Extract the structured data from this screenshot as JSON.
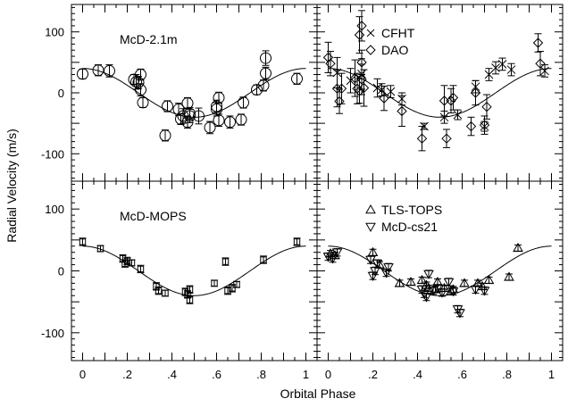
{
  "chart_data": {
    "type": "scatter",
    "xlabel": "Orbital Phase",
    "ylabel": "Radial Velocity (m/s)",
    "xlim": [
      -0.05,
      1.05
    ],
    "ylim": [
      -145,
      145
    ],
    "x_ticks": [
      0,
      0.2,
      0.4,
      0.6,
      0.8,
      1
    ],
    "x_tick_labels": [
      "0",
      ".2",
      ".4",
      ".6",
      ".8",
      "1"
    ],
    "y_ticks": [
      100,
      0,
      -100
    ],
    "y_tick_labels": [
      "100",
      "0",
      "-100"
    ],
    "model_curve": {
      "amplitude": 40,
      "phase_offset": 0.0
    },
    "panels": [
      {
        "label": "McD-2.1m",
        "series": [
          {
            "name": "",
            "marker": "circle",
            "x": [
              0.0,
              0.07,
              0.12,
              0.23,
              0.24,
              0.25,
              0.26,
              0.26,
              0.27,
              0.37,
              0.38,
              0.43,
              0.44,
              0.45,
              0.47,
              0.47,
              0.48,
              0.48,
              0.52,
              0.57,
              0.6,
              0.6,
              0.61,
              0.61,
              0.66,
              0.71,
              0.72,
              0.78,
              0.81,
              0.82,
              0.82,
              0.96
            ],
            "y": [
              31,
              37,
              36,
              22,
              18,
              17,
              30,
              5,
              -16,
              -70,
              -22,
              -27,
              -43,
              -38,
              -48,
              -17,
              -38,
              -34,
              -38,
              -57,
              -27,
              -22,
              -8,
              -45,
              -48,
              -44,
              -16,
              5,
              12,
              57,
              32,
              23
            ],
            "err": [
              8,
              9,
              10,
              8,
              12,
              10,
              9,
              10,
              8,
              9,
              9,
              10,
              9,
              12,
              10,
              9,
              11,
              10,
              13,
              10,
              11,
              10,
              9,
              10,
              10,
              9,
              9,
              8,
              9,
              12,
              10,
              9
            ]
          }
        ]
      },
      {
        "label": "",
        "legend": [
          {
            "name": "CFHT",
            "marker": "x"
          },
          {
            "name": "DAO",
            "marker": "diamond"
          }
        ],
        "series": [
          {
            "name": "CFHT",
            "marker": "x",
            "x": [
              0.04,
              0.1,
              0.15,
              0.22,
              0.24,
              0.28,
              0.33,
              0.43,
              0.52,
              0.58,
              0.66,
              0.7,
              0.72,
              0.75,
              0.78,
              0.82,
              0.97
            ],
            "y": [
              33,
              20,
              31,
              8,
              5,
              2,
              -10,
              -55,
              -40,
              -36,
              10,
              -55,
              30,
              41,
              47,
              38,
              36
            ],
            "err": [
              25,
              20,
              25,
              15,
              10,
              10,
              10,
              5,
              10,
              8,
              10,
              8,
              10,
              10,
              10,
              10,
              10
            ]
          },
          {
            "name": "DAO",
            "marker": "diamond",
            "x": [
              0.0,
              0.01,
              0.04,
              0.05,
              0.06,
              0.12,
              0.13,
              0.14,
              0.14,
              0.15,
              0.15,
              0.15,
              0.16,
              0.25,
              0.33,
              0.42,
              0.52,
              0.53,
              0.55,
              0.56,
              0.64,
              0.66,
              0.7,
              0.71,
              0.94,
              0.95
            ],
            "y": [
              58,
              48,
              7,
              -14,
              7,
              24,
              7,
              3,
              95,
              110,
              50,
              22,
              8,
              -9,
              -30,
              -75,
              -13,
              -75,
              -13,
              -8,
              -55,
              0,
              -53,
              -23,
              82,
              48
            ],
            "err": [
              25,
              20,
              30,
              20,
              25,
              30,
              25,
              20,
              30,
              25,
              20,
              25,
              30,
              20,
              25,
              20,
              25,
              15,
              20,
              20,
              15,
              20,
              15,
              20,
              15,
              20
            ]
          }
        ]
      },
      {
        "label": "McD-MOPS",
        "series": [
          {
            "name": "",
            "marker": "square",
            "x": [
              0.0,
              0.08,
              0.18,
              0.19,
              0.2,
              0.22,
              0.26,
              0.33,
              0.34,
              0.37,
              0.46,
              0.47,
              0.48,
              0.48,
              0.59,
              0.64,
              0.65,
              0.67,
              0.69,
              0.81,
              0.96
            ],
            "y": [
              47,
              36,
              20,
              12,
              16,
              13,
              3,
              -25,
              -32,
              -36,
              -34,
              -38,
              -47,
              -30,
              -20,
              15,
              -32,
              -28,
              -22,
              18,
              47
            ],
            "err": [
              6,
              5,
              6,
              6,
              6,
              5,
              6,
              6,
              6,
              5,
              6,
              6,
              6,
              6,
              5,
              6,
              6,
              6,
              5,
              6,
              6
            ]
          }
        ]
      },
      {
        "label": "",
        "legend": [
          {
            "name": "TLS-TOPS",
            "marker": "triangle-up"
          },
          {
            "name": "McD-cs21",
            "marker": "triangle-down"
          }
        ],
        "series": [
          {
            "name": "TLS-TOPS",
            "marker": "triangle-up",
            "x": [
              0.01,
              0.03,
              0.2,
              0.23,
              0.32,
              0.37,
              0.42,
              0.44,
              0.45,
              0.48,
              0.49,
              0.52,
              0.55,
              0.56,
              0.61,
              0.67,
              0.69,
              0.72,
              0.81,
              0.85
            ],
            "y": [
              28,
              25,
              30,
              10,
              -20,
              -18,
              -15,
              -23,
              -28,
              -30,
              -18,
              -28,
              -33,
              -30,
              -20,
              -20,
              -25,
              -15,
              -10,
              37
            ],
            "err": [
              5,
              5,
              5,
              5,
              5,
              5,
              5,
              5,
              5,
              5,
              5,
              5,
              5,
              5,
              5,
              5,
              5,
              5,
              5,
              5
            ]
          },
          {
            "name": "McD-cs21",
            "marker": "triangle-down",
            "x": [
              0.0,
              0.02,
              0.04,
              0.19,
              0.2,
              0.21,
              0.22,
              0.26,
              0.27,
              0.42,
              0.43,
              0.44,
              0.45,
              0.47,
              0.49,
              0.51,
              0.54,
              0.56,
              0.58,
              0.59,
              0.66,
              0.7
            ],
            "y": [
              23,
              20,
              30,
              18,
              -8,
              0,
              12,
              -3,
              6,
              -30,
              -37,
              -42,
              -5,
              -32,
              -28,
              -35,
              -18,
              -33,
              -62,
              -68,
              -30,
              -32
            ],
            "err": [
              6,
              6,
              6,
              6,
              6,
              6,
              6,
              6,
              6,
              6,
              6,
              6,
              6,
              6,
              6,
              6,
              6,
              6,
              6,
              6,
              6,
              6
            ]
          }
        ]
      }
    ]
  }
}
